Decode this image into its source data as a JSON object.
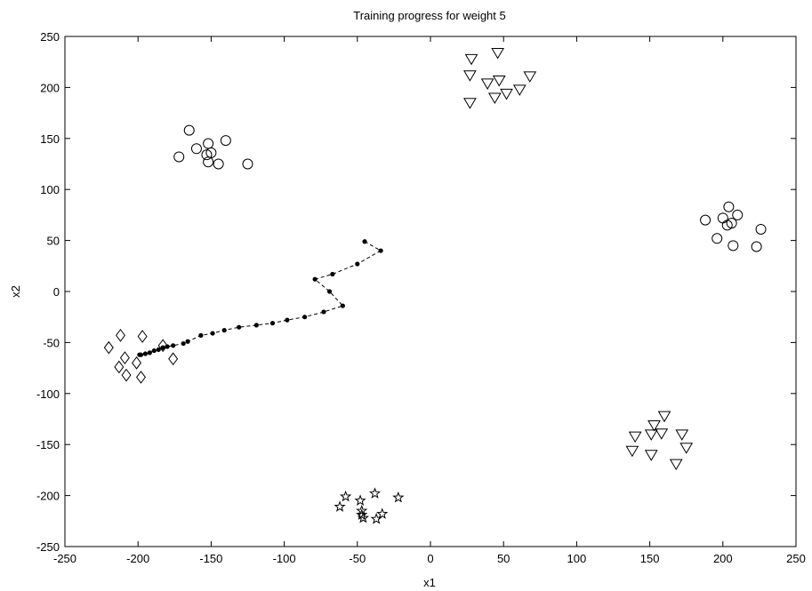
{
  "chart_data": {
    "type": "scatter",
    "title": "Training progress for weight 5",
    "xlabel": "x1",
    "ylabel": "x2",
    "xlim": [
      -250,
      250
    ],
    "ylim": [
      -250,
      250
    ],
    "xticks": [
      -250,
      -200,
      -150,
      -100,
      -50,
      0,
      50,
      100,
      150,
      200,
      250
    ],
    "yticks": [
      -250,
      -200,
      -150,
      -100,
      -50,
      0,
      50,
      100,
      150,
      200,
      250
    ],
    "grid": false,
    "series": [
      {
        "marker": "circle",
        "points": [
          [
            -165,
            158
          ],
          [
            -160,
            140
          ],
          [
            -152,
            145
          ],
          [
            -140,
            148
          ],
          [
            -150,
            136
          ],
          [
            -153,
            134
          ],
          [
            -172,
            132
          ],
          [
            -152,
            127
          ],
          [
            -145,
            125
          ],
          [
            -125,
            125
          ]
        ]
      },
      {
        "marker": "triangle-down",
        "points": [
          [
            28,
            228
          ],
          [
            46,
            234
          ],
          [
            27,
            212
          ],
          [
            68,
            211
          ],
          [
            39,
            204
          ],
          [
            47,
            207
          ],
          [
            61,
            198
          ],
          [
            52,
            194
          ],
          [
            44,
            190
          ],
          [
            27,
            185
          ]
        ]
      },
      {
        "marker": "circle",
        "points": [
          [
            204,
            83
          ],
          [
            210,
            75
          ],
          [
            200,
            72
          ],
          [
            188,
            70
          ],
          [
            206,
            67
          ],
          [
            203,
            65
          ],
          [
            226,
            61
          ],
          [
            196,
            52
          ],
          [
            207,
            45
          ],
          [
            223,
            44
          ]
        ]
      },
      {
        "marker": "diamond",
        "points": [
          [
            -212,
            -43
          ],
          [
            -197,
            -44
          ],
          [
            -220,
            -55
          ],
          [
            -183,
            -53
          ],
          [
            -209,
            -65
          ],
          [
            -201,
            -70
          ],
          [
            -176,
            -66
          ],
          [
            -213,
            -74
          ],
          [
            -208,
            -82
          ],
          [
            -198,
            -84
          ]
        ]
      },
      {
        "marker": "triangle-down",
        "points": [
          [
            160,
            -122
          ],
          [
            153,
            -131
          ],
          [
            140,
            -142
          ],
          [
            151,
            -140
          ],
          [
            158,
            -139
          ],
          [
            172,
            -140
          ],
          [
            175,
            -153
          ],
          [
            138,
            -156
          ],
          [
            151,
            -160
          ],
          [
            168,
            -169
          ]
        ]
      },
      {
        "marker": "star",
        "points": [
          [
            -58,
            -201
          ],
          [
            -38,
            -198
          ],
          [
            -22,
            -202
          ],
          [
            -48,
            -205
          ],
          [
            -62,
            -211
          ],
          [
            -47,
            -215
          ],
          [
            -47,
            -219
          ],
          [
            -33,
            -218
          ],
          [
            -46,
            -222
          ],
          [
            -37,
            -223
          ]
        ]
      },
      {
        "marker": "dot",
        "line": "dashed",
        "points": [
          [
            -45,
            49
          ],
          [
            -34,
            40
          ],
          [
            -50,
            27
          ],
          [
            -67,
            17
          ],
          [
            -79,
            12
          ],
          [
            -69,
            0
          ],
          [
            -60,
            -14
          ],
          [
            -73,
            -20
          ],
          [
            -86,
            -25
          ],
          [
            -98,
            -28
          ],
          [
            -108,
            -31
          ],
          [
            -119,
            -33
          ],
          [
            -131,
            -35
          ],
          [
            -141,
            -38
          ],
          [
            -149,
            -41
          ],
          [
            -157,
            -43
          ],
          [
            -166,
            -49
          ],
          [
            -169,
            -51
          ],
          [
            -176,
            -53
          ],
          [
            -180,
            -54
          ],
          [
            -183,
            -55
          ],
          [
            -186,
            -57
          ],
          [
            -189,
            -58
          ],
          [
            -192,
            -60
          ],
          [
            -195,
            -61
          ],
          [
            -198,
            -62
          ],
          [
            -199,
            -62
          ]
        ]
      }
    ]
  }
}
